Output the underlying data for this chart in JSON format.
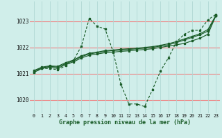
{
  "title": "Graphe pression niveau de la mer (hPa)",
  "bg_color": "#d0eeea",
  "grid_color_h": "#f08080",
  "grid_color_v": "#b0d8d4",
  "line_color": "#1a5c28",
  "xlim": [
    -0.5,
    23.5
  ],
  "ylim": [
    1019.5,
    1023.75
  ],
  "yticks": [
    1020,
    1021,
    1022,
    1023
  ],
  "xticks": [
    0,
    1,
    2,
    3,
    4,
    5,
    6,
    7,
    8,
    9,
    10,
    11,
    12,
    13,
    14,
    15,
    16,
    17,
    18,
    19,
    20,
    21,
    22,
    23
  ],
  "series": [
    [
      1021.05,
      1021.2,
      1021.2,
      1021.15,
      1021.3,
      1021.5,
      1022.05,
      1023.1,
      1022.8,
      1022.7,
      1021.85,
      1020.6,
      1019.85,
      1019.85,
      1019.75,
      1020.4,
      1021.1,
      1021.6,
      1022.2,
      1022.5,
      1022.65,
      1022.65,
      1023.05,
      1023.25
    ],
    [
      1021.05,
      1021.2,
      1021.25,
      1021.2,
      1021.35,
      1021.45,
      1021.6,
      1021.7,
      1021.75,
      1021.8,
      1021.82,
      1021.85,
      1021.87,
      1021.9,
      1021.92,
      1021.95,
      1022.0,
      1022.05,
      1022.1,
      1022.15,
      1022.25,
      1022.35,
      1022.5,
      1023.2
    ],
    [
      1021.1,
      1021.22,
      1021.28,
      1021.25,
      1021.38,
      1021.5,
      1021.65,
      1021.75,
      1021.8,
      1021.85,
      1021.88,
      1021.9,
      1021.92,
      1021.95,
      1021.97,
      1022.0,
      1022.05,
      1022.1,
      1022.18,
      1022.28,
      1022.38,
      1022.48,
      1022.62,
      1023.2
    ],
    [
      1021.12,
      1021.25,
      1021.3,
      1021.28,
      1021.42,
      1021.52,
      1021.68,
      1021.78,
      1021.82,
      1021.88,
      1021.9,
      1021.93,
      1021.95,
      1021.97,
      1022.0,
      1022.03,
      1022.08,
      1022.14,
      1022.22,
      1022.32,
      1022.42,
      1022.52,
      1022.68,
      1023.22
    ]
  ]
}
